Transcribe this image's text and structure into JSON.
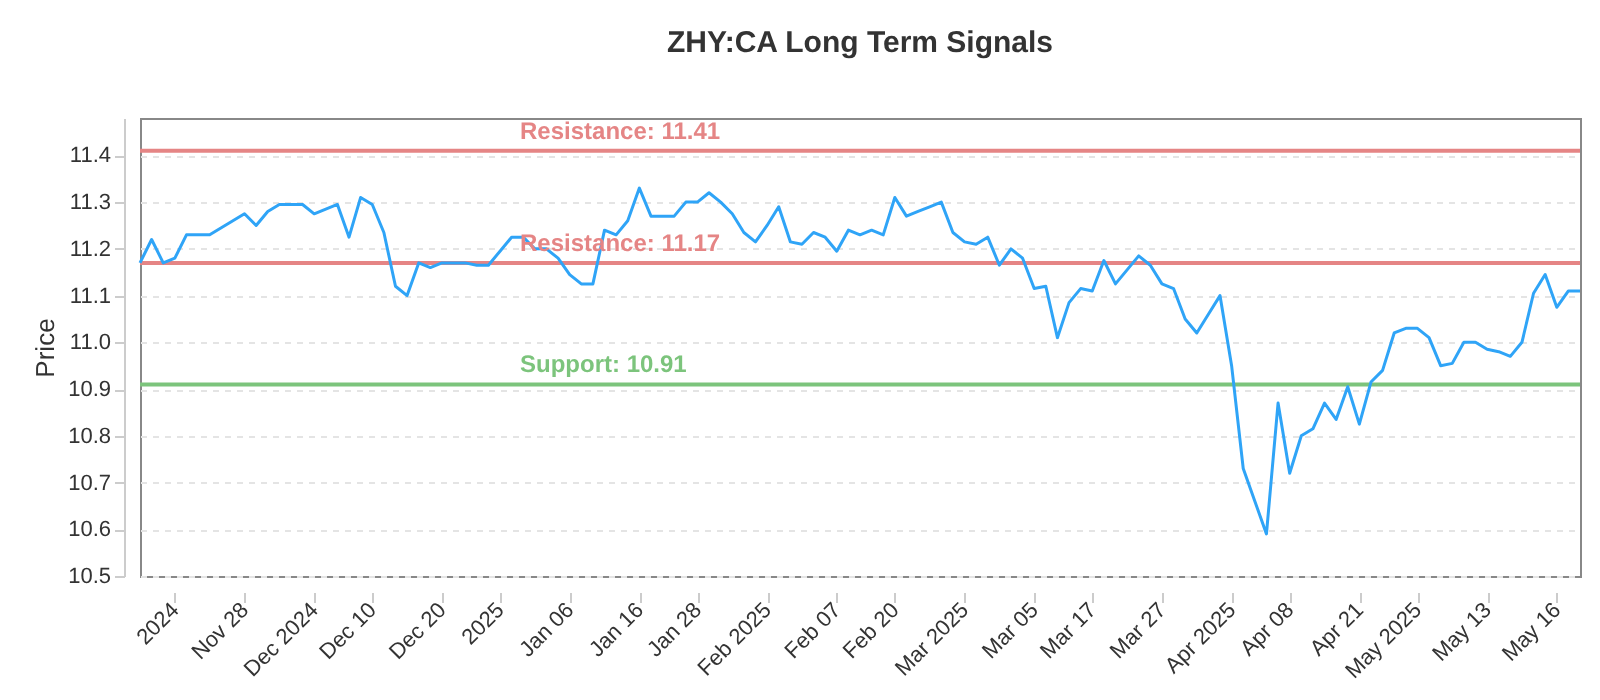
{
  "chart_data": {
    "type": "line",
    "title": "ZHY:CA Long Term Signals",
    "ylabel": "Price",
    "categories": [
      null,
      null,
      null,
      "2024",
      null,
      null,
      null,
      null,
      null,
      "Nov 28",
      null,
      null,
      null,
      null,
      null,
      "Dec 2024",
      null,
      null,
      null,
      null,
      "Dec 10",
      null,
      null,
      null,
      null,
      null,
      "Dec 20",
      null,
      null,
      null,
      null,
      "2025",
      null,
      null,
      null,
      null,
      null,
      "Jan 06",
      null,
      null,
      null,
      null,
      null,
      "Jan 16",
      null,
      null,
      null,
      null,
      "Jan 28",
      null,
      null,
      null,
      null,
      null,
      "Feb 2025",
      null,
      null,
      null,
      null,
      null,
      "Feb 07",
      null,
      null,
      null,
      null,
      "Feb 20",
      null,
      null,
      null,
      null,
      null,
      "Mar 2025",
      null,
      null,
      null,
      null,
      null,
      "Mar 05",
      null,
      null,
      null,
      null,
      "Mar 17",
      null,
      null,
      null,
      null,
      null,
      "Mar 27",
      null,
      null,
      null,
      null,
      null,
      "Apr 2025",
      null,
      null,
      null,
      null,
      "Apr 08",
      null,
      null,
      null,
      null,
      null,
      "Apr 21",
      null,
      null,
      null,
      null,
      "May 2025",
      null,
      null,
      null,
      null,
      null,
      "May 13",
      null,
      null,
      null,
      null,
      null,
      "May 16",
      null,
      null
    ],
    "series": [
      {
        "color": "#2fa4f7",
        "values": [
          11.17,
          11.22,
          11.17,
          11.18,
          11.23,
          11.23,
          11.23,
          11.245,
          11.26,
          11.275,
          11.25,
          11.28,
          11.295,
          11.295,
          11.295,
          11.275,
          11.285,
          11.295,
          11.225,
          11.31,
          11.295,
          11.235,
          11.12,
          11.1,
          11.17,
          11.16,
          11.17,
          11.17,
          11.17,
          11.165,
          11.165,
          11.195,
          11.225,
          11.225,
          11.2,
          11.2,
          11.18,
          11.145,
          11.125,
          11.125,
          11.24,
          11.23,
          11.26,
          11.33,
          11.27,
          11.27,
          11.27,
          11.3,
          11.3,
          11.32,
          11.3,
          11.275,
          11.235,
          11.215,
          11.25,
          11.29,
          11.215,
          11.21,
          11.235,
          11.225,
          11.195,
          11.24,
          11.23,
          11.24,
          11.23,
          11.31,
          11.27,
          11.28,
          11.29,
          11.3,
          11.235,
          11.215,
          11.21,
          11.225,
          11.165,
          11.2,
          11.18,
          11.115,
          11.12,
          11.01,
          11.085,
          11.115,
          11.11,
          11.175,
          11.125,
          11.155,
          11.185,
          11.165,
          11.125,
          11.115,
          11.05,
          11.02,
          11.06,
          11.1,
          10.95,
          10.73,
          10.66,
          10.59,
          10.87,
          10.72,
          10.8,
          10.815,
          10.87,
          10.835,
          10.905,
          10.825,
          10.915,
          10.94,
          11.02,
          11.03,
          11.03,
          11.01,
          10.95,
          10.955,
          11.0,
          11.0,
          10.985,
          10.98,
          10.97,
          11.0,
          11.105,
          11.145,
          11.075,
          11.11,
          11.11
        ]
      }
    ],
    "ylim": [
      10.5,
      11.48
    ],
    "yticks": [
      10.5,
      10.6,
      10.7,
      10.8,
      10.9,
      {
        "value": 11.0,
        "label": "11.0"
      },
      11.1,
      11.2,
      11.3,
      11.4
    ],
    "grid": "y",
    "line_style": "solid",
    "ref_lines": [
      {
        "axis": "y",
        "value": 11.41,
        "label": "Resistance: 11.41",
        "color": "#e58585"
      },
      {
        "axis": "y",
        "value": 11.17,
        "label": "Resistance: 11.17",
        "color": "#e58585"
      },
      {
        "axis": "y",
        "value": 10.91,
        "label": "Support: 10.91",
        "color": "#7cc47c"
      }
    ]
  }
}
